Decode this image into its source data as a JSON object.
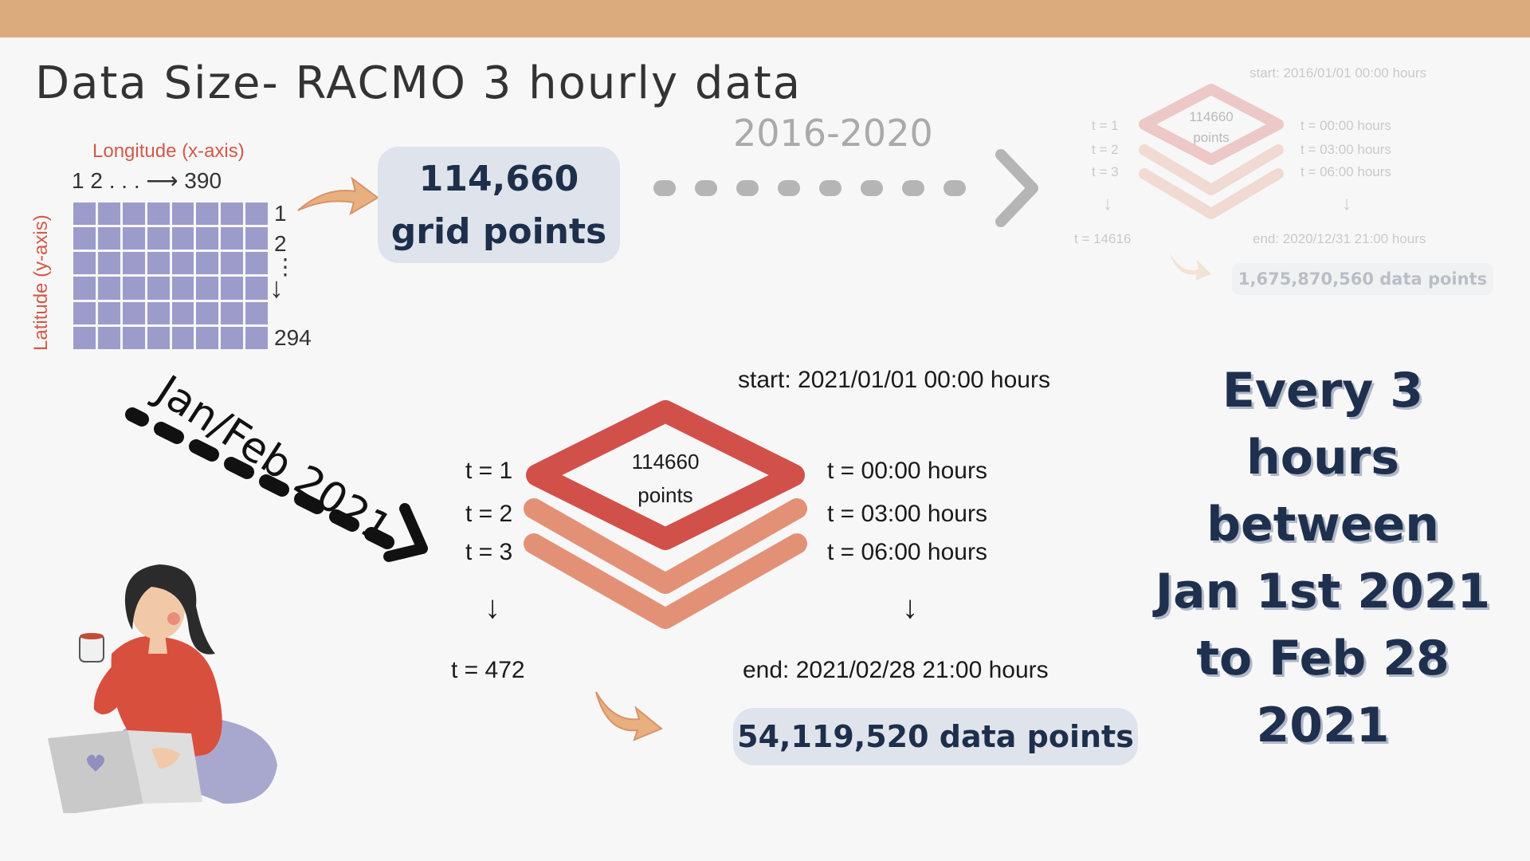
{
  "title": "Data Size- RACMO 3 hourly data",
  "grid": {
    "longitude_label": "Longitude (x-axis)",
    "longitude_ticks": "1  2  . . .  ⟶  390",
    "latitude_label": "Latitude (y-axis)",
    "latitude_ticks": [
      "1",
      "2",
      "⋮",
      "294"
    ]
  },
  "grid_points": {
    "line1": "114,660",
    "line2": "grid points"
  },
  "historical": {
    "range": "2016-2020",
    "start": "start: 2016/01/01  00:00 hours",
    "end": "end: 2020/12/31  21:00 hours",
    "layer_text": [
      "114660",
      "points"
    ],
    "t_labels": [
      "t = 1",
      "t = 2",
      "t = 3"
    ],
    "t_last": "t = 14616",
    "time_labels": [
      "t = 00:00 hours",
      "t = 03:00 hours",
      "t = 06:00 hours"
    ],
    "data_points": "1,675,870,560 data points"
  },
  "current": {
    "period": "Jan/Feb 2021",
    "start": "start: 2021/01/01  00:00 hours",
    "end": "end: 2021/02/28  21:00 hours",
    "layer_text": [
      "114660",
      "points"
    ],
    "t_labels": [
      "t = 1",
      "t = 2",
      "t = 3"
    ],
    "t_last": "t = 472",
    "time_labels": [
      "t = 00:00 hours",
      "t = 03:00 hours",
      "t = 06:00 hours"
    ],
    "data_points": "54,119,520 data points"
  },
  "summary": [
    "Every 3",
    "hours",
    "between",
    "Jan 1st 2021",
    "to Feb 28",
    "2021"
  ],
  "colors": {
    "top_band": "#dbab7d",
    "layer_top": "#d2504a",
    "layer_lower": "#e39176",
    "grid_cell": "#9c9ccb",
    "arrow": "#e8b07e",
    "navy": "#1f2f4e"
  },
  "icons": {
    "person": "woman-with-laptop-and-mug-illustration"
  }
}
